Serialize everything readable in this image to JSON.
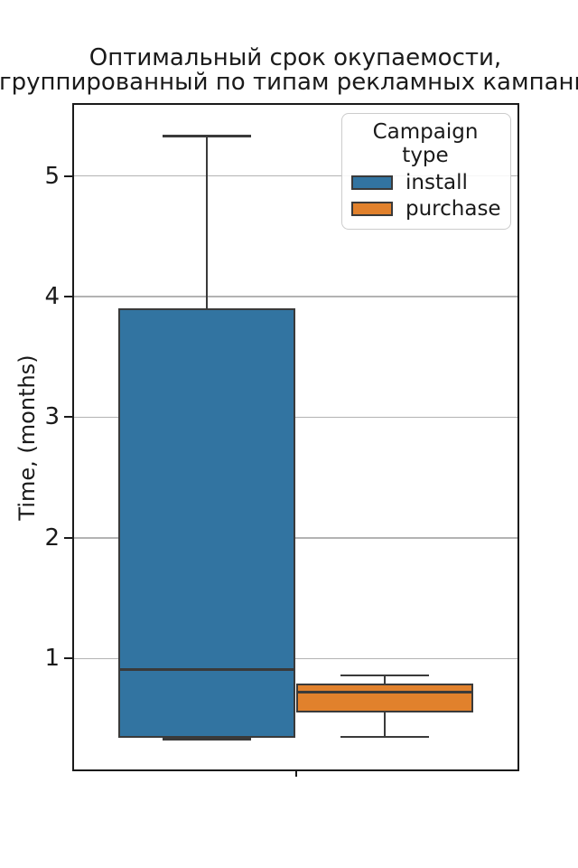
{
  "chart_data": {
    "type": "box",
    "title_line1": "Оптимальный срок окупаемости,",
    "title_line2": "сгруппированный по типам рекламных кампаний",
    "ylabel": "Time, (months)",
    "xlabel": "",
    "categories": [
      ""
    ],
    "yticks": [
      1,
      2,
      3,
      4,
      5
    ],
    "ylim": [
      0.08,
      5.59
    ],
    "grid": true,
    "legend": {
      "title": "Campaign type",
      "position": "upper right",
      "entries": [
        {
          "label": "install",
          "color": "#3274a1"
        },
        {
          "label": "purchase",
          "color": "#e1812c"
        }
      ]
    },
    "series": [
      {
        "name": "install",
        "color": "#3274a1",
        "center_frac": 0.3,
        "width_frac": 0.4,
        "whisker_low": 0.33,
        "q1": 0.34,
        "median": 0.91,
        "q3": 3.9,
        "whisker_high": 5.33
      },
      {
        "name": "purchase",
        "color": "#e1812c",
        "center_frac": 0.7,
        "width_frac": 0.4,
        "whisker_low": 0.35,
        "q1": 0.55,
        "median": 0.72,
        "q3": 0.79,
        "whisker_high": 0.86
      }
    ],
    "colors": {
      "box_edge": "#3a3a3a",
      "grid": "#b3b3b3",
      "spine": "#1a1a1a",
      "text": "#1a1a1a"
    }
  }
}
